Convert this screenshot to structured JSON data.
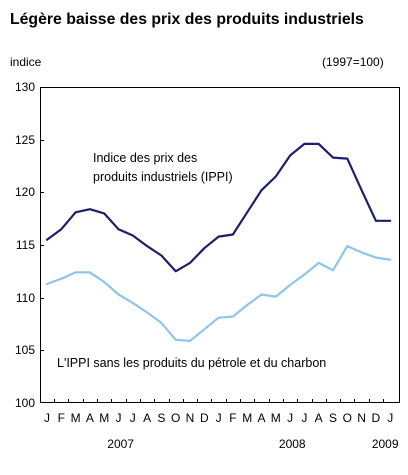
{
  "chart_data": {
    "type": "line",
    "title": "Légère baisse des prix des produits industriels",
    "ylabel": "indice",
    "index_base": "(1997=100)",
    "ylim": [
      100,
      130
    ],
    "yticks": [
      100,
      105,
      110,
      115,
      120,
      125,
      130
    ],
    "grid": false,
    "categories": [
      "J",
      "F",
      "M",
      "A",
      "M",
      "J",
      "J",
      "A",
      "S",
      "O",
      "N",
      "D",
      "J",
      "F",
      "M",
      "A",
      "M",
      "J",
      "J",
      "A",
      "S",
      "O",
      "N",
      "D",
      "J"
    ],
    "year_labels": [
      "2007",
      "2008",
      "2009"
    ],
    "series": [
      {
        "name": "Indice des prix des produits industriels (IPPI)",
        "color": "#1d1f6b",
        "values": [
          115.5,
          116.5,
          118.1,
          118.4,
          118.0,
          116.5,
          115.9,
          114.9,
          114.0,
          112.5,
          113.3,
          114.7,
          115.8,
          116.0,
          118.1,
          120.2,
          121.5,
          123.5,
          124.6,
          124.6,
          123.3,
          123.2,
          120.2,
          117.3,
          117.3
        ]
      },
      {
        "name": "L'IPPI sans les produits du pétrole et du charbon",
        "color": "#8ec6e9",
        "values": [
          111.3,
          111.8,
          112.4,
          112.4,
          111.5,
          110.3,
          109.5,
          108.6,
          107.6,
          106.0,
          105.9,
          107.0,
          108.1,
          108.2,
          109.3,
          110.3,
          110.1,
          111.2,
          112.2,
          113.3,
          112.6,
          114.9,
          114.3,
          113.8,
          113.6
        ]
      }
    ]
  }
}
